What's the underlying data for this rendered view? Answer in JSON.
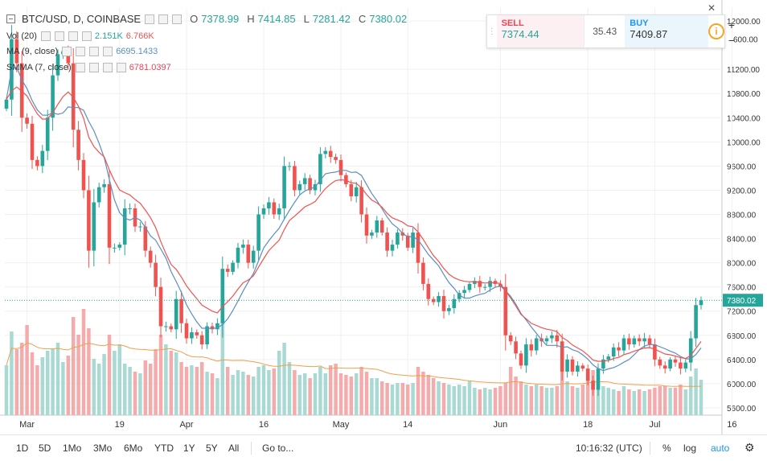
{
  "header": {
    "symbol": "BTC/USD, D, COINBASE",
    "open_label": "O",
    "open": "7378.99",
    "high_label": "H",
    "high": "7414.85",
    "low_label": "L",
    "low": "7281.42",
    "close_label": "C",
    "close": "7380.02"
  },
  "indicators": {
    "vol": {
      "label": "Vol (20)",
      "v1": "2.151K",
      "v2": "6.766K",
      "c1": "#26a69a",
      "c2": "#ef5350"
    },
    "ma": {
      "label": "MA (9, close)",
      "value": "6695.1433",
      "color": "#5b8fbf"
    },
    "smma": {
      "label": "SMMA (7, close)",
      "value": "6781.0397",
      "color": "#e94557"
    }
  },
  "trade": {
    "sell_label": "SELL",
    "sell_value": "7374.44",
    "spread": "35.43",
    "buy_label": "BUY",
    "buy_value": "7409.87",
    "info_icon": "info-icon"
  },
  "zoom": {
    "plus": "+",
    "minus": "−"
  },
  "close_icon": "close-icon",
  "toolbar": {
    "ranges": [
      "1D",
      "5D",
      "1Mo",
      "3Mo",
      "6Mo",
      "YTD",
      "1Y",
      "5Y",
      "All"
    ],
    "goto": "Go to...",
    "time": "10:16:32 (UTC)",
    "percent": "%",
    "log": "log",
    "auto": "auto",
    "settings_icon": "gear-icon"
  },
  "chart_data": {
    "type": "candlestick",
    "title": "BTC/USD, D, COINBASE",
    "price_axis_ticks": [
      12000,
      11200,
      10800,
      10400,
      10000,
      9600,
      9200,
      8800,
      8400,
      8000,
      7600,
      7200,
      6800,
      6400,
      6000,
      5600
    ],
    "price_axis_partial_label": "600.00",
    "ylim": [
      5400,
      12200
    ],
    "last_price": 7380.02,
    "last_price_label": "7380.02",
    "x_ticks": [
      {
        "label": "Mar",
        "day": 4
      },
      {
        "label": "19",
        "day": 22
      },
      {
        "label": "Apr",
        "day": 35
      },
      {
        "label": "16",
        "day": 50
      },
      {
        "label": "May",
        "day": 65
      },
      {
        "label": "14",
        "day": 78
      },
      {
        "label": "Jun",
        "day": 96
      },
      {
        "label": "18",
        "day": 113
      },
      {
        "label": "Jul",
        "day": 126
      },
      {
        "label": "16",
        "day": 141
      }
    ],
    "colors": {
      "up": "#26a69a",
      "down": "#ef5350",
      "up_vol": "#a9d9d3",
      "down_vol": "#f5abab",
      "ma": "#5b8fbf",
      "smma": "#ef5350",
      "vol_ma": "#f0a04b"
    },
    "closes": [
      10700,
      11700,
      11300,
      10400,
      10300,
      9700,
      9600,
      9850,
      10400,
      11100,
      11450,
      11500,
      11300,
      10200,
      9700,
      9200,
      8200,
      9000,
      9250,
      9300,
      8250,
      8250,
      8300,
      8900,
      8900,
      8600,
      8600,
      8200,
      8000,
      7600,
      6950,
      6950,
      6900,
      7400,
      7000,
      6750,
      6850,
      6800,
      6650,
      6950,
      6900,
      7000,
      7900,
      7850,
      8000,
      8250,
      8300,
      8000,
      8200,
      8800,
      8900,
      9000,
      8800,
      8900,
      9600,
      9600,
      9200,
      9300,
      9400,
      9200,
      9300,
      9800,
      9850,
      9750,
      9700,
      9450,
      9300,
      9100,
      9250,
      8800,
      8450,
      8500,
      8700,
      8500,
      8200,
      8300,
      8500,
      8450,
      8250,
      8500,
      8000,
      7650,
      7400,
      7350,
      7450,
      7200,
      7250,
      7400,
      7500,
      7550,
      7650,
      7700,
      7600,
      7600,
      7700,
      7650,
      7600,
      6800,
      6700,
      6500,
      6300,
      6650,
      6550,
      6750,
      6700,
      6750,
      6800,
      6700,
      6200,
      6400,
      6200,
      6300,
      6250,
      6050,
      5900,
      6250,
      6400,
      6450,
      6600,
      6550,
      6750,
      6650,
      6750,
      6700,
      6750,
      6650,
      6400,
      6300,
      6250,
      6400,
      6350,
      6250,
      6350,
      6750,
      7300,
      7380
    ],
    "volumes": [
      3100,
      5200,
      4100,
      4500,
      5600,
      3900,
      3100,
      3600,
      4000,
      4100,
      4500,
      3300,
      3700,
      6100,
      5000,
      6600,
      5400,
      3500,
      3200,
      3800,
      5000,
      4000,
      4400,
      3200,
      3000,
      2700,
      2600,
      3400,
      3200,
      4100,
      5000,
      4400,
      4000,
      3900,
      3300,
      3000,
      3100,
      3000,
      3300,
      2700,
      2600,
      2300,
      5800,
      3000,
      2500,
      2800,
      2700,
      2500,
      2400,
      3000,
      3100,
      2800,
      2900,
      4000,
      4500,
      3300,
      2800,
      2500,
      2600,
      2300,
      2600,
      3000,
      2600,
      3100,
      3200,
      2600,
      2500,
      2400,
      2600,
      3000,
      2700,
      2300,
      2300,
      2100,
      2000,
      1900,
      2000,
      2000,
      1900,
      2000,
      3000,
      2700,
      2500,
      2300,
      2100,
      2000,
      1900,
      1800,
      1900,
      1800,
      2100,
      1700,
      1600,
      1700,
      1600,
      1700,
      1800,
      2000,
      3000,
      2400,
      2100,
      1900,
      1800,
      1900,
      1800,
      1700,
      1700,
      1800,
      2800,
      2100,
      1800,
      1700,
      1900,
      2400,
      2800,
      2100,
      1800,
      1700,
      1600,
      1500,
      1800,
      1600,
      1500,
      1600,
      1500,
      1600,
      1700,
      1800,
      1800,
      1700,
      1700,
      1900,
      1600,
      2400,
      2900,
      2200
    ]
  }
}
